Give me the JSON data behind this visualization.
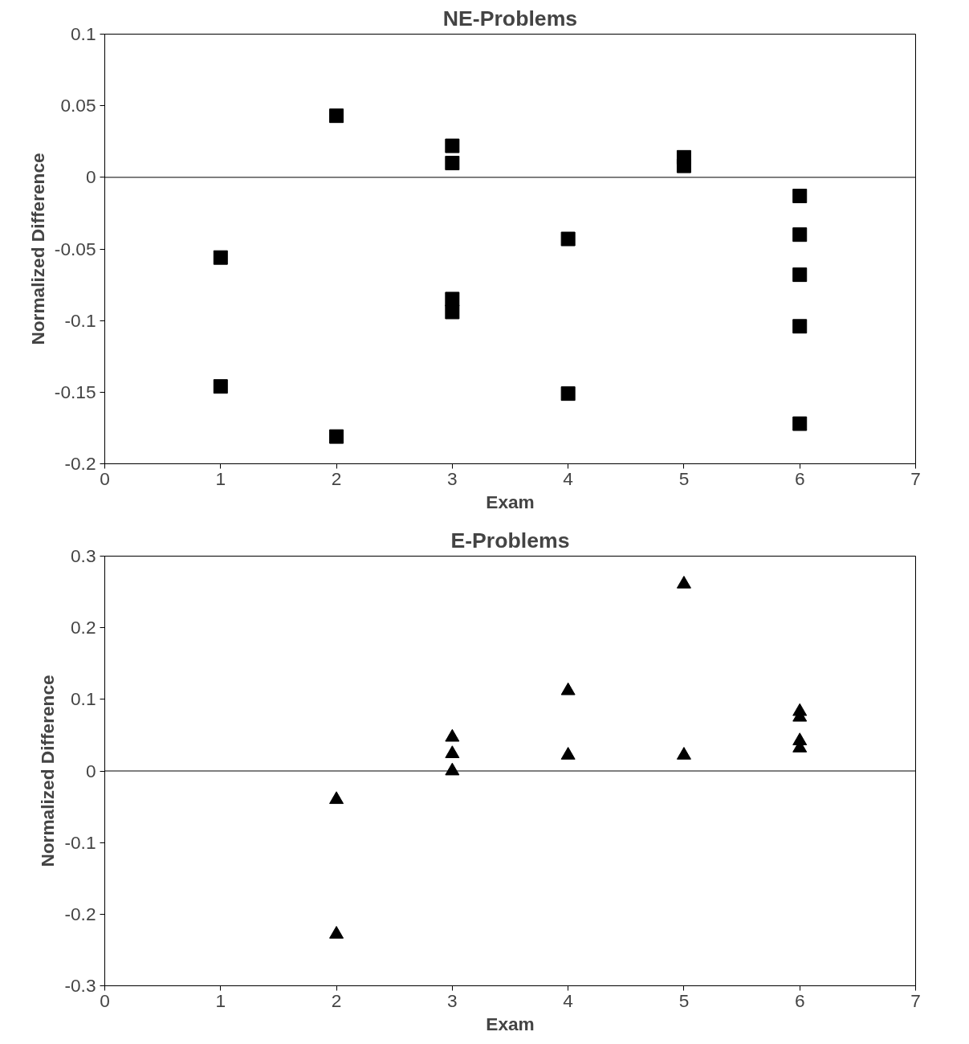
{
  "chart_data": [
    {
      "type": "scatter",
      "title": "NE-Problems",
      "xlabel": "Exam",
      "ylabel": "Normalized Difference",
      "marker": "square",
      "grid": false,
      "ref_lines": [
        {
          "axis": "y",
          "value": 0,
          "color": "#000000"
        }
      ],
      "xlim": [
        0,
        7
      ],
      "xticks": [
        0,
        1,
        2,
        3,
        4,
        5,
        6,
        7
      ],
      "ylim": [
        -0.2,
        0.1
      ],
      "yticks": [
        -0.2,
        -0.15,
        -0.1,
        -0.05,
        0,
        0.05,
        0.1
      ],
      "series": [
        {
          "color": "#000000",
          "x": [
            1,
            1,
            2,
            2,
            3,
            3,
            3,
            3,
            4,
            4,
            5,
            5,
            6,
            6,
            6,
            6,
            6
          ],
          "values": [
            -0.056,
            -0.146,
            0.043,
            -0.181,
            0.022,
            0.01,
            -0.085,
            -0.094,
            -0.043,
            -0.151,
            0.014,
            0.008,
            -0.013,
            -0.04,
            -0.068,
            -0.104,
            -0.172
          ]
        }
      ]
    },
    {
      "type": "scatter",
      "title": "E-Problems",
      "xlabel": "Exam",
      "ylabel": "Normalized Difference",
      "marker": "triangle",
      "grid": false,
      "ref_lines": [
        {
          "axis": "y",
          "value": 0,
          "color": "#000000"
        }
      ],
      "xlim": [
        0,
        7
      ],
      "xticks": [
        0,
        1,
        2,
        3,
        4,
        5,
        6,
        7
      ],
      "ylim": [
        -0.3,
        0.3
      ],
      "yticks": [
        -0.3,
        -0.2,
        -0.1,
        0,
        0.1,
        0.2,
        0.3
      ],
      "series": [
        {
          "color": "#000000",
          "x": [
            2,
            2,
            3,
            3,
            3,
            4,
            4,
            5,
            5,
            6,
            6,
            6,
            6
          ],
          "values": [
            -0.04,
            -0.228,
            0.047,
            0.024,
            0.0,
            0.112,
            0.022,
            0.261,
            0.022,
            0.083,
            0.075,
            0.042,
            0.032
          ]
        }
      ]
    }
  ]
}
